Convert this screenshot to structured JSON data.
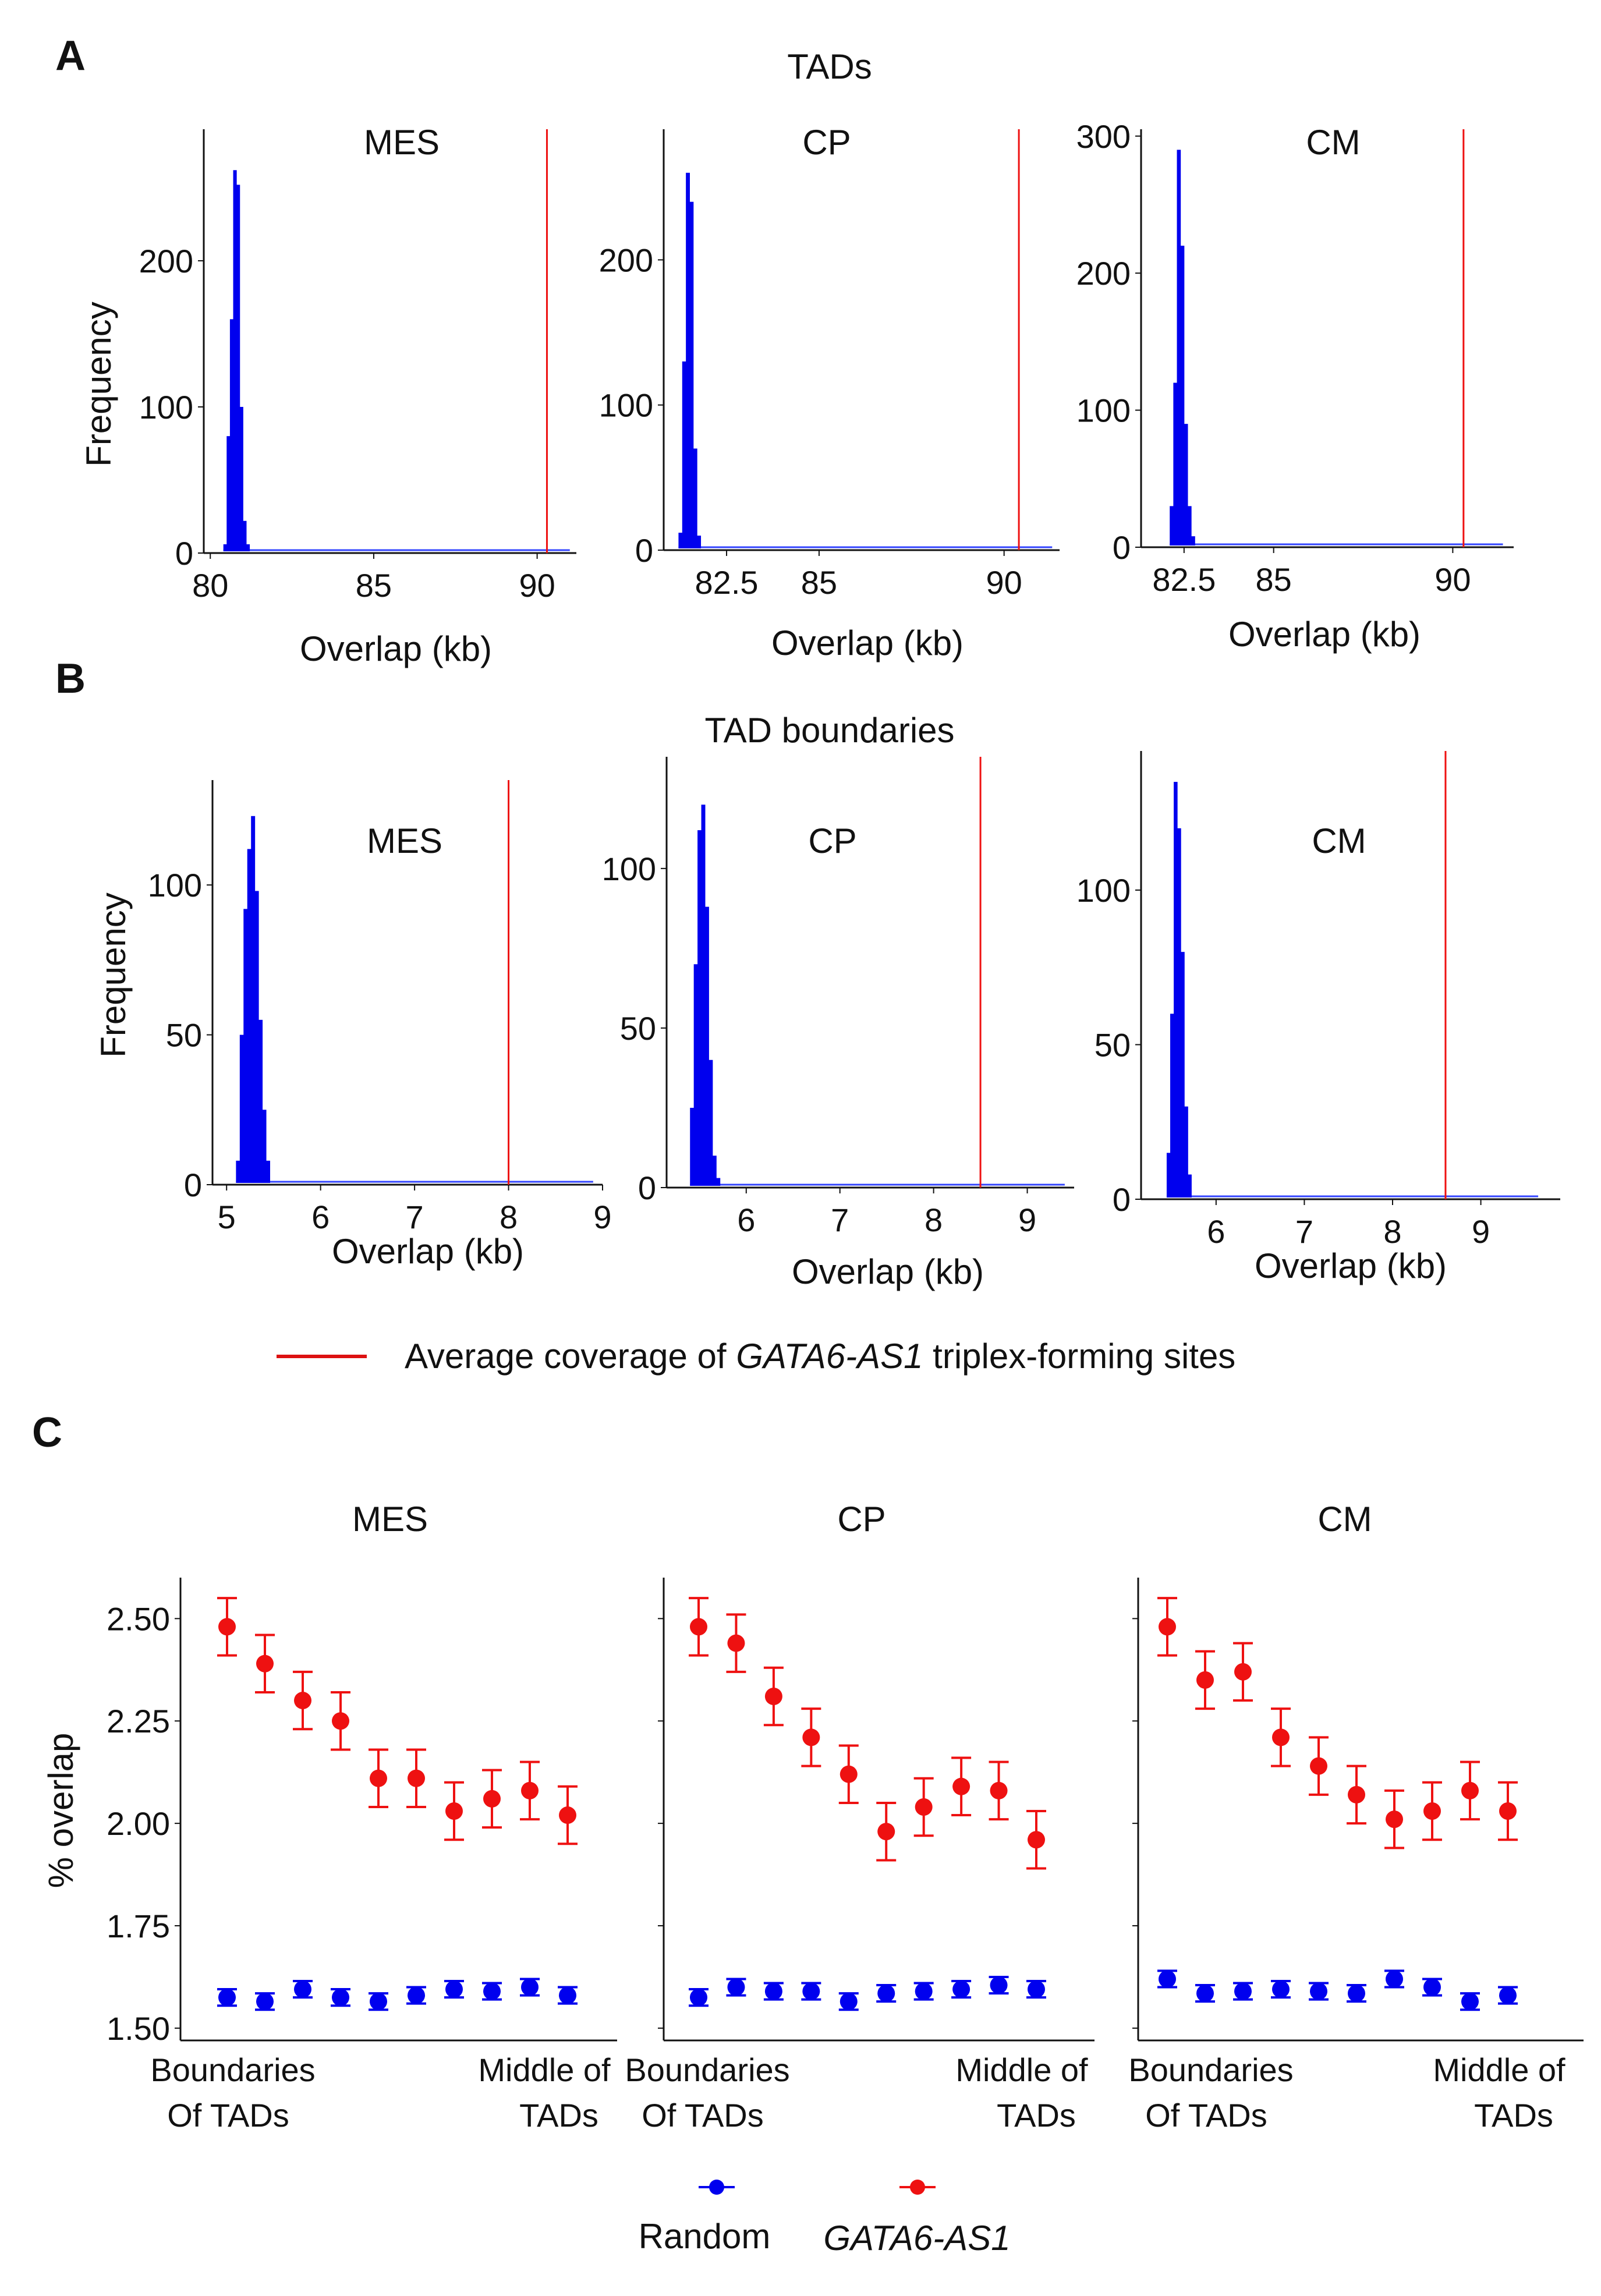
{
  "panel_letters": {
    "a": "A",
    "b": "B",
    "c": "C"
  },
  "section_titles": {
    "a": "TADs",
    "b": "TAD boundaries"
  },
  "colors": {
    "histogram": "#0000ee",
    "baseline": "#3344ff",
    "reference_line": "#ee1111",
    "random": "#0000ee",
    "gata": "#ee1111",
    "axis": "#111111"
  },
  "legend_ab": {
    "prefix": "Average coverage of ",
    "italic": "GATA6-AS1",
    "suffix": " triplex-forming sites"
  },
  "legend_c": {
    "random": "Random",
    "gata": "GATA6-AS1"
  },
  "chart_data": [
    {
      "id": "tads_mes",
      "type": "histogram",
      "title": "MES",
      "xlabel": "Overlap (kb)",
      "ylabel": "Frequency",
      "xlim": [
        79.8,
        91.2
      ],
      "ylim": [
        0,
        290
      ],
      "xticks": [
        {
          "v": 80,
          "label": "80"
        },
        {
          "v": 85,
          "label": "85"
        },
        {
          "v": 90,
          "label": "90"
        }
      ],
      "yticks": [
        {
          "v": 0,
          "label": "0"
        },
        {
          "v": 100,
          "label": "100"
        },
        {
          "v": 200,
          "label": "200"
        }
      ],
      "bin_start": 80.4,
      "bin_width": 0.1,
      "counts": [
        6,
        80,
        160,
        262,
        252,
        100,
        22,
        6
      ],
      "baseline_end": 91.0,
      "reference_value": 90.3
    },
    {
      "id": "tads_cp",
      "type": "histogram",
      "title": "CP",
      "xlabel": "Overlap (kb)",
      "ylabel": "",
      "xlim": [
        80.8,
        91.5
      ],
      "ylim": [
        0,
        290
      ],
      "xticks": [
        {
          "v": 82.5,
          "label": "82.5"
        },
        {
          "v": 85,
          "label": "85"
        },
        {
          "v": 90,
          "label": "90"
        }
      ],
      "yticks": [
        {
          "v": 0,
          "label": "0"
        },
        {
          "v": 100,
          "label": "100"
        },
        {
          "v": 200,
          "label": "200"
        }
      ],
      "bin_start": 81.2,
      "bin_width": 0.1,
      "counts": [
        12,
        130,
        260,
        240,
        70,
        10
      ],
      "baseline_end": 91.3,
      "reference_value": 90.4
    },
    {
      "id": "tads_cm",
      "type": "histogram",
      "title": "CM",
      "xlabel": "Overlap (kb)",
      "ylabel": "",
      "xlim": [
        81.3,
        91.7
      ],
      "ylim": [
        0,
        305
      ],
      "xticks": [
        {
          "v": 82.5,
          "label": "82.5"
        },
        {
          "v": 85,
          "label": "85"
        },
        {
          "v": 90,
          "label": "90"
        }
      ],
      "yticks": [
        {
          "v": 0,
          "label": "0"
        },
        {
          "v": 100,
          "label": "100"
        },
        {
          "v": 200,
          "label": "200"
        },
        {
          "v": 300,
          "label": "300"
        }
      ],
      "bin_start": 82.1,
      "bin_width": 0.1,
      "counts": [
        30,
        120,
        290,
        220,
        90,
        30,
        8
      ],
      "baseline_end": 91.4,
      "reference_value": 90.3
    },
    {
      "id": "bnd_mes",
      "type": "histogram",
      "title": "MES",
      "xlabel": "Overlap (kb)",
      "ylabel": "Frequency",
      "xlim": [
        4.85,
        9.0
      ],
      "ylim": [
        0,
        135
      ],
      "xticks": [
        {
          "v": 5,
          "label": "5"
        },
        {
          "v": 6,
          "label": "6"
        },
        {
          "v": 7,
          "label": "7"
        },
        {
          "v": 8,
          "label": "8"
        },
        {
          "v": 9,
          "label": "9"
        }
      ],
      "yticks": [
        {
          "v": 0,
          "label": "0"
        },
        {
          "v": 50,
          "label": "50"
        },
        {
          "v": 100,
          "label": "100"
        }
      ],
      "bin_start": 5.1,
      "bin_width": 0.04,
      "counts": [
        8,
        50,
        92,
        112,
        123,
        98,
        55,
        25,
        8
      ],
      "baseline_end": 8.9,
      "reference_value": 8.0
    },
    {
      "id": "bnd_cp",
      "type": "histogram",
      "title": "CP",
      "xlabel": "Overlap (kb)",
      "ylabel": "",
      "xlim": [
        5.15,
        9.5
      ],
      "ylim": [
        0,
        135
      ],
      "xticks": [
        {
          "v": 6,
          "label": "6"
        },
        {
          "v": 7,
          "label": "7"
        },
        {
          "v": 8,
          "label": "8"
        },
        {
          "v": 9,
          "label": "9"
        }
      ],
      "yticks": [
        {
          "v": 0,
          "label": "0"
        },
        {
          "v": 50,
          "label": "50"
        },
        {
          "v": 100,
          "label": "100"
        }
      ],
      "bin_start": 5.4,
      "bin_width": 0.04,
      "counts": [
        25,
        70,
        112,
        120,
        88,
        40,
        10,
        3
      ],
      "baseline_end": 9.4,
      "reference_value": 8.5
    },
    {
      "id": "bnd_cm",
      "type": "histogram",
      "title": "CM",
      "xlabel": "Overlap (kb)",
      "ylabel": "",
      "xlim": [
        5.15,
        9.9
      ],
      "ylim": [
        0,
        145
      ],
      "xticks": [
        {
          "v": 6,
          "label": "6"
        },
        {
          "v": 7,
          "label": "7"
        },
        {
          "v": 8,
          "label": "8"
        },
        {
          "v": 9,
          "label": "9"
        }
      ],
      "yticks": [
        {
          "v": 0,
          "label": "0"
        },
        {
          "v": 50,
          "label": "50"
        },
        {
          "v": 100,
          "label": "100"
        }
      ],
      "bin_start": 5.44,
      "bin_width": 0.04,
      "counts": [
        15,
        60,
        135,
        120,
        80,
        30,
        8
      ],
      "baseline_end": 9.65,
      "reference_value": 8.6
    },
    {
      "id": "pos_mes",
      "type": "scatter",
      "title": "MES",
      "ylabel": "% overlap",
      "ylim": [
        1.47,
        2.6
      ],
      "yticks": [
        {
          "v": 1.5,
          "label": "1.50"
        },
        {
          "v": 1.75,
          "label": "1.75"
        },
        {
          "v": 2.0,
          "label": "2.00"
        },
        {
          "v": 2.25,
          "label": "2.25"
        },
        {
          "v": 2.5,
          "label": "2.50"
        }
      ],
      "x_labels": {
        "left": [
          "Boundaries",
          "Of TADs"
        ],
        "right": [
          "Middle of",
          "TADs"
        ]
      },
      "x": [
        1,
        2,
        3,
        4,
        5,
        6,
        7,
        8,
        9,
        10
      ],
      "series": [
        {
          "name": "Random",
          "values": [
            1.575,
            1.565,
            1.595,
            1.575,
            1.565,
            1.58,
            1.595,
            1.59,
            1.6,
            1.58
          ],
          "err": 0.02
        },
        {
          "name": "GATA6-AS1",
          "values": [
            2.48,
            2.39,
            2.3,
            2.25,
            2.11,
            2.11,
            2.03,
            2.06,
            2.08,
            2.02
          ],
          "err": 0.07
        }
      ]
    },
    {
      "id": "pos_cp",
      "type": "scatter",
      "title": "CP",
      "ylabel": "",
      "ylim": [
        1.47,
        2.6
      ],
      "yticks": [
        {
          "v": 1.5,
          "label": ""
        },
        {
          "v": 1.75,
          "label": ""
        },
        {
          "v": 2.0,
          "label": ""
        },
        {
          "v": 2.25,
          "label": ""
        },
        {
          "v": 2.5,
          "label": ""
        }
      ],
      "x_labels": {
        "left": [
          "Boundaries",
          "Of TADs"
        ],
        "right": [
          "Middle of",
          "TADs"
        ]
      },
      "x": [
        1,
        2,
        3,
        4,
        5,
        6,
        7,
        8,
        9,
        10
      ],
      "series": [
        {
          "name": "Random",
          "values": [
            1.575,
            1.6,
            1.59,
            1.59,
            1.565,
            1.585,
            1.59,
            1.595,
            1.605,
            1.595
          ],
          "err": 0.02
        },
        {
          "name": "GATA6-AS1",
          "values": [
            2.48,
            2.44,
            2.31,
            2.21,
            2.12,
            1.98,
            2.04,
            2.09,
            2.08,
            1.96
          ],
          "err": 0.07
        }
      ]
    },
    {
      "id": "pos_cm",
      "type": "scatter",
      "title": "CM",
      "ylabel": "",
      "ylim": [
        1.47,
        2.6
      ],
      "yticks": [
        {
          "v": 1.5,
          "label": ""
        },
        {
          "v": 1.75,
          "label": ""
        },
        {
          "v": 2.0,
          "label": ""
        },
        {
          "v": 2.25,
          "label": ""
        },
        {
          "v": 2.5,
          "label": ""
        }
      ],
      "x_labels": {
        "left": [
          "Boundaries",
          "Of TADs"
        ],
        "right": [
          "Middle of",
          "TADs"
        ]
      },
      "x": [
        1,
        2,
        3,
        4,
        5,
        6,
        7,
        8,
        9,
        10
      ],
      "series": [
        {
          "name": "Random",
          "values": [
            1.62,
            1.585,
            1.59,
            1.595,
            1.59,
            1.585,
            1.62,
            1.6,
            1.565,
            1.58
          ],
          "err": 0.02
        },
        {
          "name": "GATA6-AS1",
          "values": [
            2.48,
            2.35,
            2.37,
            2.21,
            2.14,
            2.07,
            2.01,
            2.03,
            2.08,
            2.03
          ],
          "err": 0.07
        }
      ]
    }
  ]
}
